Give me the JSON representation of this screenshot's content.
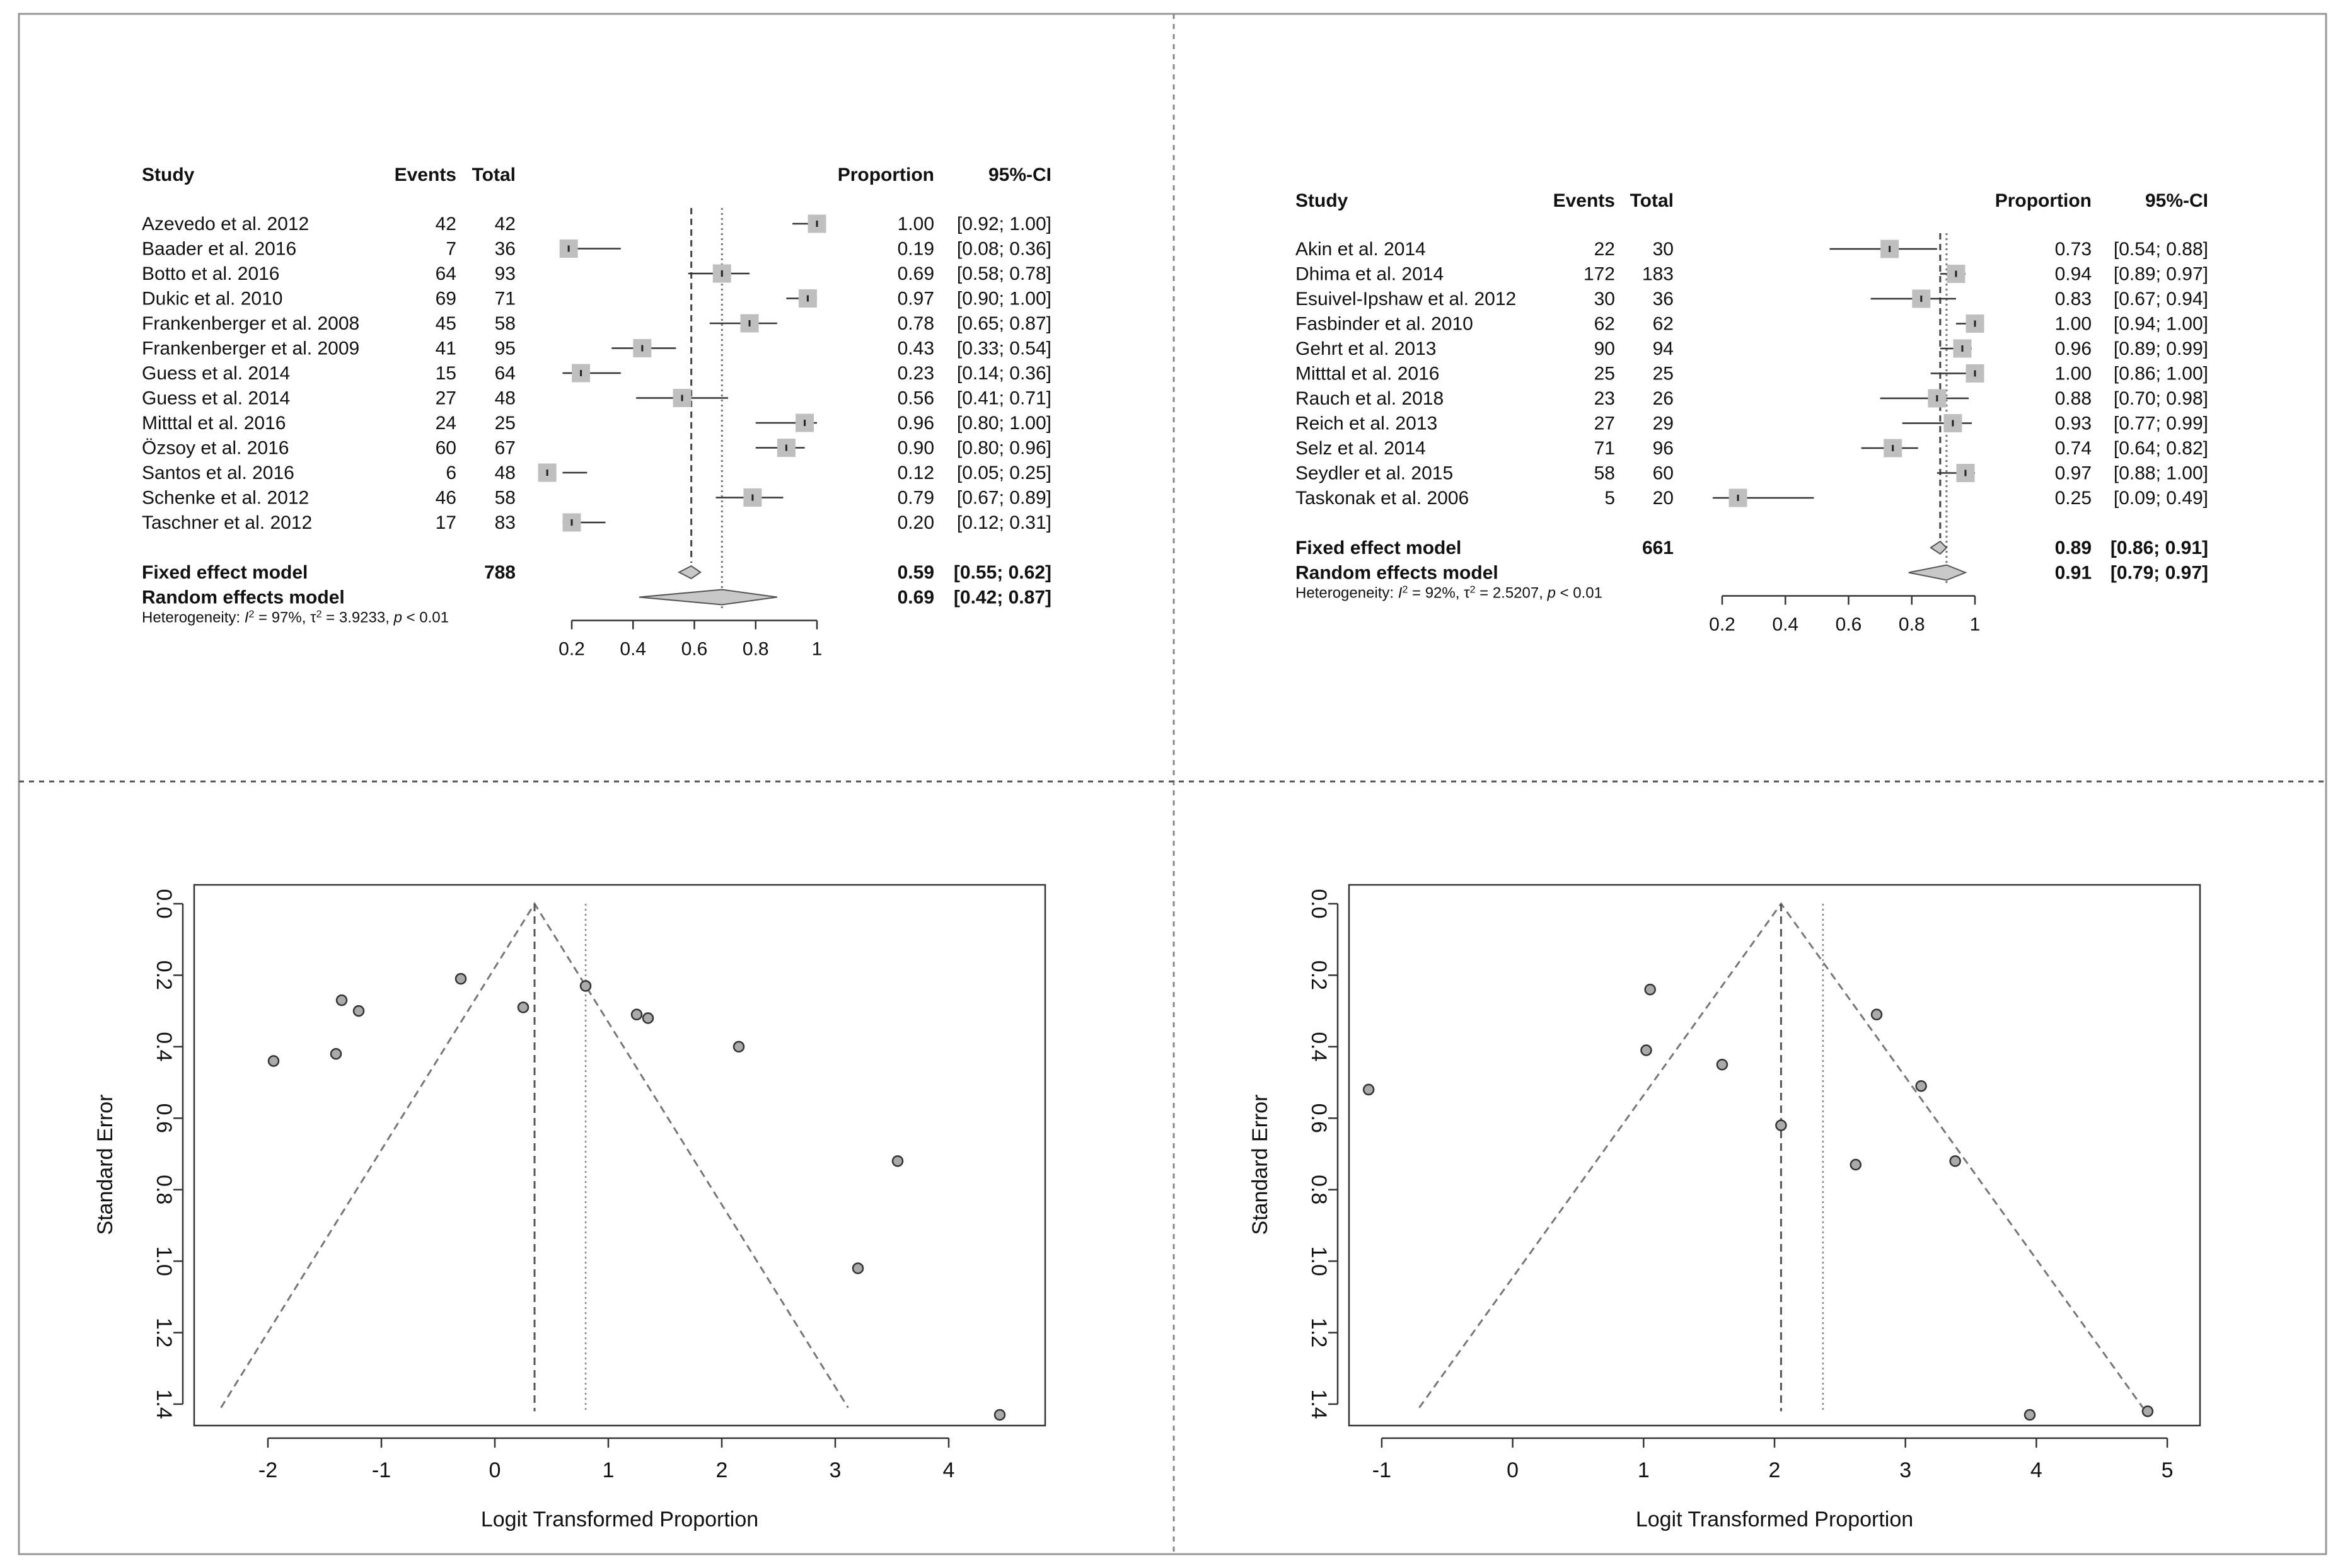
{
  "forest_headers": {
    "study": "Study",
    "events": "Events",
    "total": "Total",
    "proportion": "Proportion",
    "ci": "95%-CI"
  },
  "chart_data": [
    {
      "type": "forest",
      "panel": "top-left",
      "studies": [
        {
          "study": "Azevedo et al. 2012",
          "events": "42",
          "total": "42",
          "prop_text": "1.00",
          "ci_text": "[0.92; 1.00]",
          "prop": 1.0,
          "lo": 0.92,
          "hi": 1.0
        },
        {
          "study": "Baader et al. 2016",
          "events": "7",
          "total": "36",
          "prop_text": "0.19",
          "ci_text": "[0.08; 0.36]",
          "prop": 0.19,
          "lo": 0.08,
          "hi": 0.36
        },
        {
          "study": "Botto et al. 2016",
          "events": "64",
          "total": "93",
          "prop_text": "0.69",
          "ci_text": "[0.58; 0.78]",
          "prop": 0.69,
          "lo": 0.58,
          "hi": 0.78
        },
        {
          "study": "Dukic et al. 2010",
          "events": "69",
          "total": "71",
          "prop_text": "0.97",
          "ci_text": "[0.90; 1.00]",
          "prop": 0.97,
          "lo": 0.9,
          "hi": 1.0
        },
        {
          "study": "Frankenberger et al. 2008",
          "events": "45",
          "total": "58",
          "prop_text": "0.78",
          "ci_text": "[0.65; 0.87]",
          "prop": 0.78,
          "lo": 0.65,
          "hi": 0.87
        },
        {
          "study": "Frankenberger et al. 2009",
          "events": "41",
          "total": "95",
          "prop_text": "0.43",
          "ci_text": "[0.33; 0.54]",
          "prop": 0.43,
          "lo": 0.33,
          "hi": 0.54
        },
        {
          "study": "Guess et al. 2014",
          "events": "15",
          "total": "64",
          "prop_text": "0.23",
          "ci_text": "[0.14; 0.36]",
          "prop": 0.23,
          "lo": 0.14,
          "hi": 0.36
        },
        {
          "study": "Guess et al. 2014",
          "events": "27",
          "total": "48",
          "prop_text": "0.56",
          "ci_text": "[0.41; 0.71]",
          "prop": 0.56,
          "lo": 0.41,
          "hi": 0.71
        },
        {
          "study": "Mitttal et al. 2016",
          "events": "24",
          "total": "25",
          "prop_text": "0.96",
          "ci_text": "[0.80; 1.00]",
          "prop": 0.96,
          "lo": 0.8,
          "hi": 1.0
        },
        {
          "study": "Özsoy et al. 2016",
          "events": "60",
          "total": "67",
          "prop_text": "0.90",
          "ci_text": "[0.80; 0.96]",
          "prop": 0.9,
          "lo": 0.8,
          "hi": 0.96
        },
        {
          "study": "Santos et al. 2016",
          "events": "6",
          "total": "48",
          "prop_text": "0.12",
          "ci_text": "[0.05; 0.25]",
          "prop": 0.12,
          "lo": 0.05,
          "hi": 0.25
        },
        {
          "study": "Schenke et al. 2012",
          "events": "46",
          "total": "58",
          "prop_text": "0.79",
          "ci_text": "[0.67; 0.89]",
          "prop": 0.79,
          "lo": 0.67,
          "hi": 0.89
        },
        {
          "study": "Taschner et al. 2012",
          "events": "17",
          "total": "83",
          "prop_text": "0.20",
          "ci_text": "[0.12; 0.31]",
          "prop": 0.2,
          "lo": 0.12,
          "hi": 0.31
        }
      ],
      "fixed": {
        "label": "Fixed effect model",
        "total": "788",
        "prop_text": "0.59",
        "ci_text": "[0.55; 0.62]",
        "prop": 0.59,
        "lo": 0.55,
        "hi": 0.62
      },
      "random": {
        "label": "Random effects model",
        "prop_text": "0.69",
        "ci_text": "[0.42; 0.87]",
        "prop": 0.69,
        "lo": 0.42,
        "hi": 0.87
      },
      "heterogeneity": {
        "prefix": "Heterogeneity: ",
        "i2": "I",
        "i2_rest": " = 97%, ",
        "tau": "τ",
        "tau_rest": " = 3.9233, ",
        "p": "p",
        "p_rest": " < 0.01"
      },
      "xlim": [
        0.2,
        1.0
      ],
      "xticks": [
        "0.2",
        "0.4",
        "0.6",
        "0.8",
        "1"
      ]
    },
    {
      "type": "forest",
      "panel": "top-right",
      "studies": [
        {
          "study": "Akin et al. 2014",
          "events": "22",
          "total": "30",
          "prop_text": "0.73",
          "ci_text": "[0.54; 0.88]",
          "prop": 0.73,
          "lo": 0.54,
          "hi": 0.88
        },
        {
          "study": "Dhima et al. 2014",
          "events": "172",
          "total": "183",
          "prop_text": "0.94",
          "ci_text": "[0.89; 0.97]",
          "prop": 0.94,
          "lo": 0.89,
          "hi": 0.97
        },
        {
          "study": "Esuivel-Ipshaw et al. 2012",
          "events": "30",
          "total": "36",
          "prop_text": "0.83",
          "ci_text": "[0.67; 0.94]",
          "prop": 0.83,
          "lo": 0.67,
          "hi": 0.94
        },
        {
          "study": "Fasbinder et al. 2010",
          "events": "62",
          "total": "62",
          "prop_text": "1.00",
          "ci_text": "[0.94; 1.00]",
          "prop": 1.0,
          "lo": 0.94,
          "hi": 1.0
        },
        {
          "study": "Gehrt et al. 2013",
          "events": "90",
          "total": "94",
          "prop_text": "0.96",
          "ci_text": "[0.89; 0.99]",
          "prop": 0.96,
          "lo": 0.89,
          "hi": 0.99
        },
        {
          "study": "Mitttal et al. 2016",
          "events": "25",
          "total": "25",
          "prop_text": "1.00",
          "ci_text": "[0.86; 1.00]",
          "prop": 1.0,
          "lo": 0.86,
          "hi": 1.0
        },
        {
          "study": "Rauch et al. 2018",
          "events": "23",
          "total": "26",
          "prop_text": "0.88",
          "ci_text": "[0.70; 0.98]",
          "prop": 0.88,
          "lo": 0.7,
          "hi": 0.98
        },
        {
          "study": "Reich et al. 2013",
          "events": "27",
          "total": "29",
          "prop_text": "0.93",
          "ci_text": "[0.77; 0.99]",
          "prop": 0.93,
          "lo": 0.77,
          "hi": 0.99
        },
        {
          "study": "Selz et al. 2014",
          "events": "71",
          "total": "96",
          "prop_text": "0.74",
          "ci_text": "[0.64; 0.82]",
          "prop": 0.74,
          "lo": 0.64,
          "hi": 0.82
        },
        {
          "study": "Seydler et al. 2015",
          "events": "58",
          "total": "60",
          "prop_text": "0.97",
          "ci_text": "[0.88; 1.00]",
          "prop": 0.97,
          "lo": 0.88,
          "hi": 1.0
        },
        {
          "study": "Taskonak et al. 2006",
          "events": "5",
          "total": "20",
          "prop_text": "0.25",
          "ci_text": "[0.09; 0.49]",
          "prop": 0.25,
          "lo": 0.09,
          "hi": 0.49
        }
      ],
      "fixed": {
        "label": "Fixed effect model",
        "total": "661",
        "prop_text": "0.89",
        "ci_text": "[0.86; 0.91]",
        "prop": 0.89,
        "lo": 0.86,
        "hi": 0.91
      },
      "random": {
        "label": "Random effects model",
        "prop_text": "0.91",
        "ci_text": "[0.79; 0.97]",
        "prop": 0.91,
        "lo": 0.79,
        "hi": 0.97
      },
      "heterogeneity": {
        "prefix": "Heterogeneity: ",
        "i2": "I",
        "i2_rest": " = 92%, ",
        "tau": "τ",
        "tau_rest": " = 2.5207, ",
        "p": "p",
        "p_rest": " < 0.01"
      },
      "xlim": [
        0.2,
        1.0
      ],
      "xticks": [
        "0.2",
        "0.4",
        "0.6",
        "0.8",
        "1"
      ]
    },
    {
      "type": "scatter",
      "panel": "bottom-left",
      "subtype": "funnel",
      "xlabel": "Logit Transformed Proportion",
      "ylabel": "Standard Error",
      "xlim": [
        -2.65,
        4.85
      ],
      "ylim": [
        0,
        1.46
      ],
      "xticks": [
        -2,
        -1,
        0,
        1,
        2,
        3,
        4
      ],
      "xtick_labels": [
        "-2",
        "-1",
        "0",
        "1",
        "2",
        "3",
        "4"
      ],
      "yticks": [
        0,
        0.2,
        0.4,
        0.6,
        0.8,
        1.0,
        1.2,
        1.4
      ],
      "ytick_labels": [
        "0.0",
        "0.2",
        "0.4",
        "0.6",
        "0.8",
        "1.0",
        "1.2",
        "1.4"
      ],
      "fixed_estimate": 0.35,
      "random_estimate": 0.8,
      "funnel_se_max": 1.41,
      "points": [
        [
          -1.95,
          0.44
        ],
        [
          -1.4,
          0.42
        ],
        [
          -1.35,
          0.27
        ],
        [
          -1.2,
          0.3
        ],
        [
          -0.3,
          0.21
        ],
        [
          0.25,
          0.29
        ],
        [
          0.8,
          0.23
        ],
        [
          1.25,
          0.31
        ],
        [
          1.35,
          0.32
        ],
        [
          2.15,
          0.4
        ],
        [
          3.55,
          0.72
        ],
        [
          3.2,
          1.02
        ],
        [
          4.45,
          1.43
        ]
      ]
    },
    {
      "type": "scatter",
      "panel": "bottom-right",
      "subtype": "funnel",
      "xlabel": "Logit Transformed Proportion",
      "ylabel": "Standard Error",
      "xlim": [
        -1.25,
        5.25
      ],
      "ylim": [
        0,
        1.46
      ],
      "xticks": [
        -1,
        0,
        1,
        2,
        3,
        4,
        5
      ],
      "xtick_labels": [
        "-1",
        "0",
        "1",
        "2",
        "3",
        "4",
        "5"
      ],
      "yticks": [
        0,
        0.2,
        0.4,
        0.6,
        0.8,
        1.0,
        1.2,
        1.4
      ],
      "ytick_labels": [
        "0.0",
        "0.2",
        "0.4",
        "0.6",
        "0.8",
        "1.0",
        "1.2",
        "1.4"
      ],
      "fixed_estimate": 2.05,
      "random_estimate": 2.37,
      "funnel_se_max": 1.41,
      "points": [
        [
          -1.1,
          0.52
        ],
        [
          1.05,
          0.24
        ],
        [
          1.02,
          0.41
        ],
        [
          1.6,
          0.45
        ],
        [
          2.05,
          0.62
        ],
        [
          2.62,
          0.73
        ],
        [
          2.78,
          0.31
        ],
        [
          3.12,
          0.51
        ],
        [
          3.38,
          0.72
        ],
        [
          3.95,
          1.43
        ],
        [
          4.85,
          1.42
        ]
      ]
    }
  ]
}
